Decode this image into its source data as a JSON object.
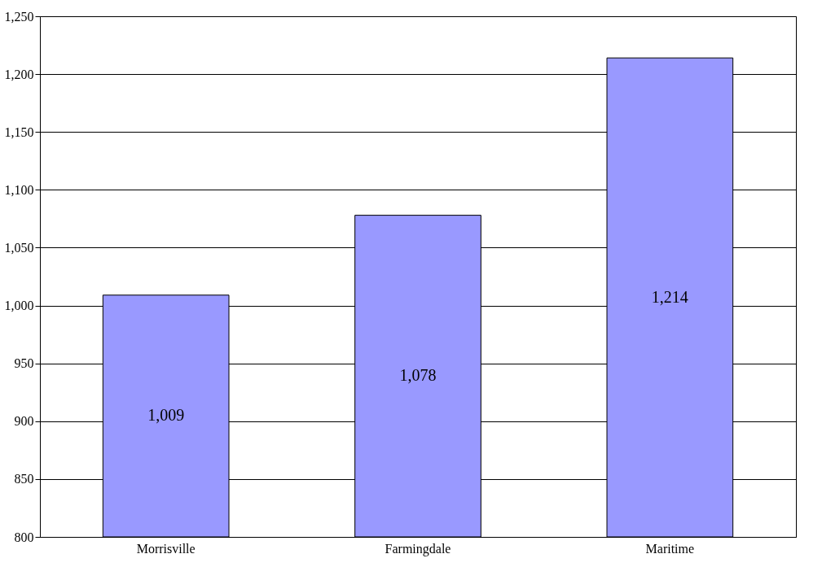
{
  "chart_data": {
    "type": "bar",
    "categories": [
      "Morrisville",
      "Farmingdale",
      "Maritime"
    ],
    "values": [
      1009,
      1078,
      1214
    ],
    "color": "#9999ff",
    "ylim": [
      800,
      1250
    ],
    "yticks": [
      800,
      850,
      900,
      950,
      {
        "value": 1000,
        "label": "1,000"
      },
      {
        "value": 1050,
        "label": "1,050"
      },
      {
        "value": 1100,
        "label": "1,100"
      },
      {
        "value": 1150,
        "label": "1,150"
      },
      {
        "value": 1200,
        "label": "1,200"
      },
      {
        "value": 1250,
        "label": "1,250"
      }
    ],
    "value_labels": [
      "1,009",
      "1,078",
      "1,214"
    ],
    "grid": "y"
  }
}
